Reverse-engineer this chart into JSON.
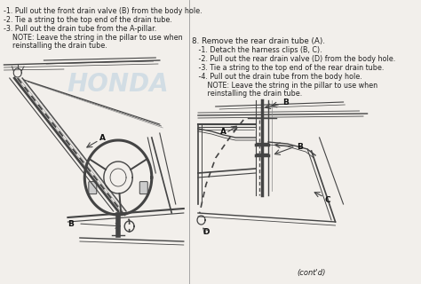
{
  "bg_color": "#f2efeb",
  "divider_color": "#999999",
  "honda_watermark": "HONDA",
  "honda_color": "#b8cfe0",
  "left_texts": [
    "-1. Pull out the front drain valve (B) from the body hole.",
    "-2. Tie a string to the top end of the drain tube.",
    "-3. Pull out the drain tube from the A-pillar.",
    "    NOTE: Leave the string in the pillar to use when",
    "    reinstalling the drain tube."
  ],
  "right_header": "8. Remove the rear drain tube (A).",
  "right_texts": [
    "   -1. Detach the harness clips (B, C).",
    "   -2. Pull out the rear drain valve (D) from the body hole.",
    "   -3. Tie a string to the top end of the rear drain tube.",
    "   -4. Pull out the drain tube from the body hole.",
    "       NOTE: Leave the string in the pillar to use when",
    "       reinstalling the drain tube."
  ],
  "contd_text": "(cont'd)",
  "line_color": "#444444",
  "label_color": "#111111",
  "text_color": "#222222",
  "text_fontsize": 5.8,
  "label_fontsize": 6.5
}
